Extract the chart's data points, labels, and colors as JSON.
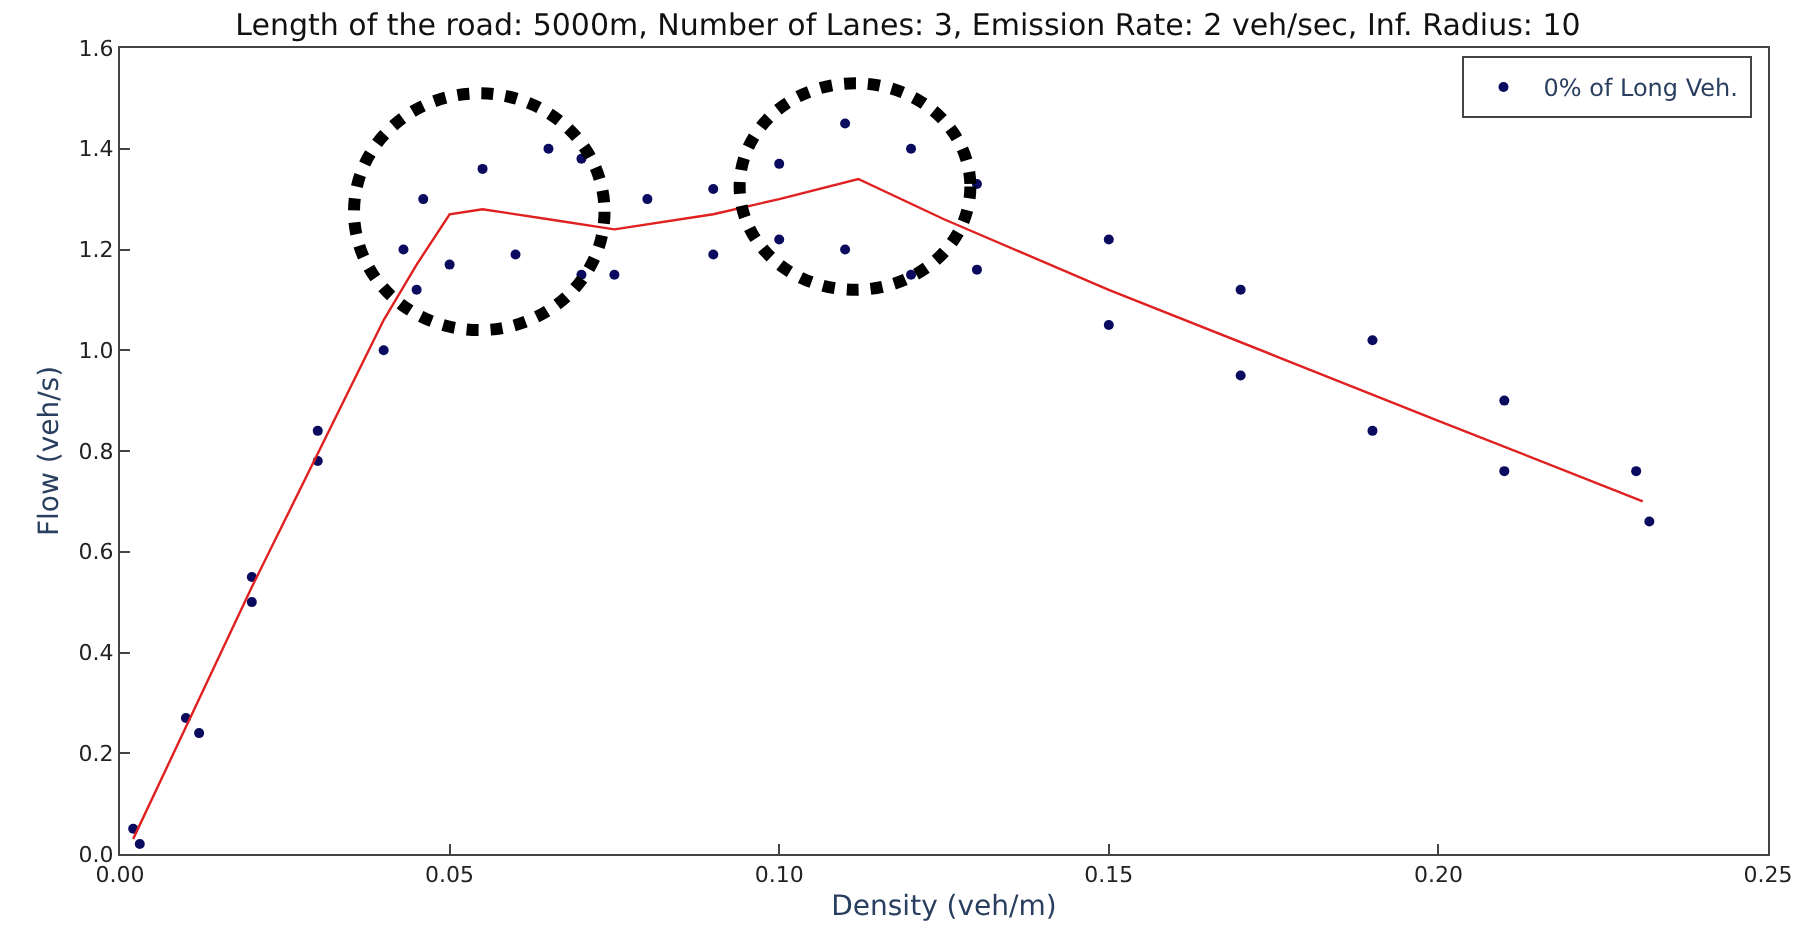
{
  "chart_data": {
    "type": "scatter",
    "title": "Length of the road: 5000m, Number of Lanes: 3, Emission Rate: 2 veh/sec, Inf. Radius: 10",
    "xlabel": "Density (veh/m)",
    "ylabel": "Flow (veh/s)",
    "xlim": [
      0,
      0.25
    ],
    "ylim": [
      0,
      1.6
    ],
    "xticks": [
      {
        "value": 0,
        "label": "0.00"
      },
      0.05,
      {
        "value": 0.1,
        "label": "0.10"
      },
      0.15,
      {
        "value": 0.2,
        "label": "0.20"
      },
      0.25
    ],
    "yticks": [
      {
        "value": 0,
        "label": "0.0"
      },
      0.2,
      0.4,
      0.6,
      0.8,
      {
        "value": 1,
        "label": "1.0"
      },
      1.2,
      1.4,
      1.6
    ],
    "grid": false,
    "legend": "top right",
    "marker": "circle",
    "series": [
      {
        "name": "0% of Long Veh.",
        "color": "#0a0a5e",
        "x": [
          0.002,
          0.01,
          0.02,
          0.03,
          0.043,
          0.046,
          0.055,
          0.065,
          0.07,
          0.08,
          0.09,
          0.1,
          0.11,
          0.12,
          0.13,
          0.15,
          0.17,
          0.19,
          0.21,
          0.23,
          0.003,
          0.012,
          0.02,
          0.03,
          0.04,
          0.045,
          0.05,
          0.06,
          0.07,
          0.075,
          0.09,
          0.1,
          0.11,
          0.12,
          0.13,
          0.15,
          0.17,
          0.19,
          0.21,
          0.232
        ],
        "values": [
          0.05,
          0.27,
          0.55,
          0.84,
          1.2,
          1.3,
          1.36,
          1.4,
          1.38,
          1.3,
          1.32,
          1.37,
          1.45,
          1.4,
          1.33,
          1.22,
          1.12,
          1.02,
          0.9,
          0.76,
          0.02,
          0.24,
          0.5,
          0.78,
          1.0,
          1.12,
          1.17,
          1.19,
          1.15,
          1.15,
          1.19,
          1.22,
          1.2,
          1.15,
          1.16,
          1.05,
          0.95,
          0.84,
          0.76,
          0.66
        ]
      },
      {
        "type": "line",
        "color": "#e02020",
        "marker": "none",
        "x": [
          0.002,
          0.02,
          0.04,
          0.045,
          0.05,
          0.055,
          0.065,
          0.075,
          0.09,
          0.1,
          0.112,
          0.125,
          0.15,
          0.175,
          0.2,
          0.231
        ],
        "values": [
          0.03,
          0.53,
          1.06,
          1.17,
          1.27,
          1.28,
          1.26,
          1.24,
          1.27,
          1.3,
          1.34,
          1.26,
          1.12,
          0.99,
          0.86,
          0.7
        ]
      }
    ]
  }
}
